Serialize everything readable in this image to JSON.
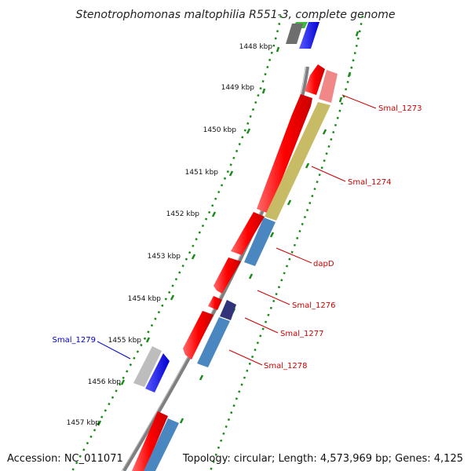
{
  "title": "Stenotrophomonas maltophilia R551-3, complete genome",
  "accession_text": "Accession: NC_011071",
  "topology_text": "Topology: circular; Length: 4,573,969 bp; Genes: 4,125",
  "kbp_ticks": [
    "1448 kbp",
    "1449 kbp",
    "1450 kbp",
    "1451 kbp",
    "1452 kbp",
    "1453 kbp",
    "1454 kbp",
    "1455 kbp",
    "1456 kbp",
    "1457 kbp"
  ],
  "gene_labels": {
    "smal_1273": "Smal_1273",
    "smal_1274": "Smal_1274",
    "dapd": "dapD",
    "smal_1276": "Smal_1276",
    "smal_1277": "Smal_1277",
    "smal_1278": "Smal_1278",
    "smal_1279": "Smal_1279"
  },
  "colors": {
    "backbone": "#7f7f7f",
    "tick_green": "#1a8a1a",
    "forward_red": "#ff1a1a",
    "reverse_blue": "#0000ff",
    "protein_steelblue": "#4a86c0",
    "olive": "#c8bb66",
    "salmon": "#f08888",
    "navy": "#33337a",
    "label_red": "#cc0000",
    "label_blue": "#0000cc",
    "grey_gene": "#bdbdbd"
  }
}
